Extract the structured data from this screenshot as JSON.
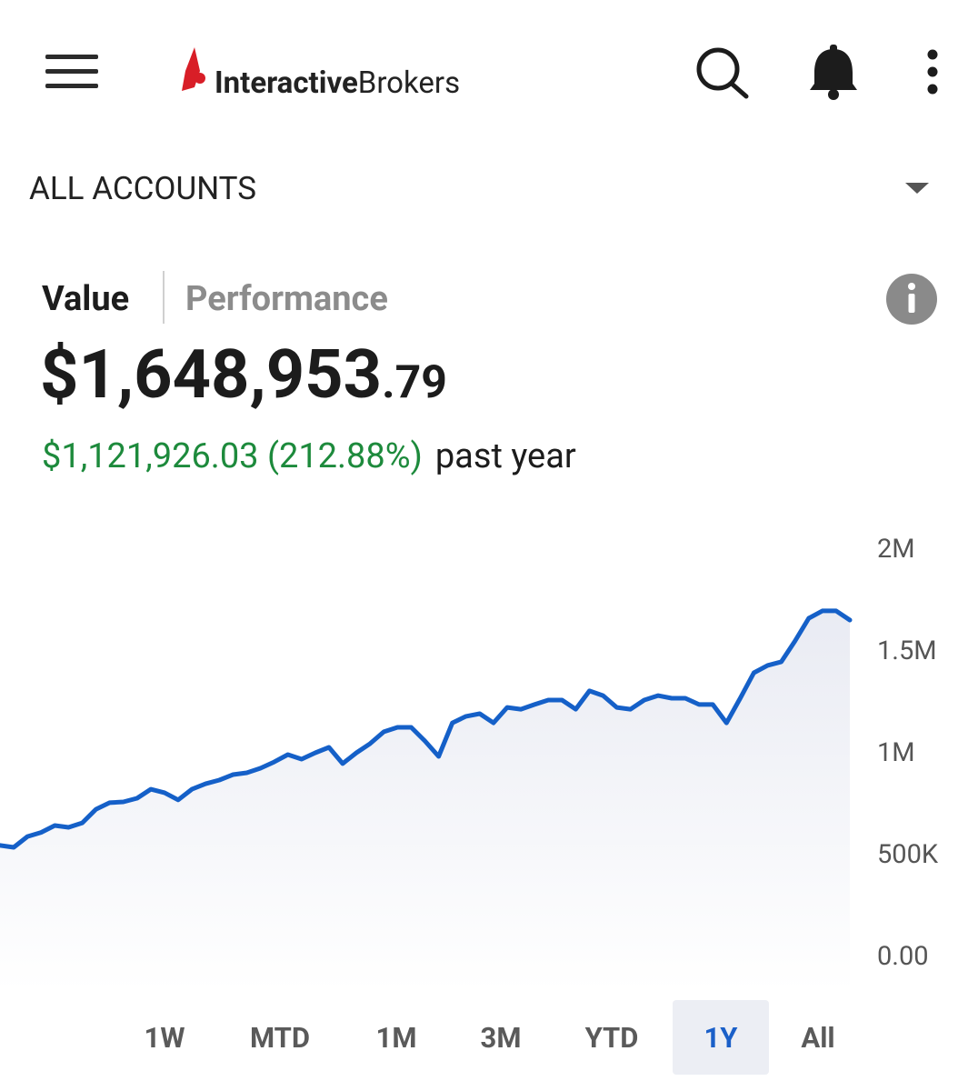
{
  "header": {
    "logo": {
      "bold": "Interactive",
      "regular": "Brokers"
    }
  },
  "account_selector": "ALL ACCOUNTS",
  "tabs": [
    "Value",
    "Performance"
  ],
  "value": {
    "main": "$1,648,953",
    "cents": ".79"
  },
  "change": {
    "amount": "$1,121,926.03 (212.88%)",
    "period": "past year"
  },
  "chart_data": {
    "type": "line",
    "color": "#1560c8",
    "values": [
      536000,
      527000,
      580000,
      600000,
      634000,
      625000,
      647000,
      714000,
      746000,
      750000,
      768000,
      812000,
      795000,
      760000,
      812000,
      839000,
      857000,
      884000,
      893000,
      915000,
      946000,
      982000,
      960000,
      991000,
      1018000,
      938000,
      991000,
      1036000,
      1094000,
      1116000,
      1116000,
      1049000,
      973000,
      1138000,
      1170000,
      1183000,
      1138000,
      1214000,
      1205000,
      1228000,
      1250000,
      1250000,
      1205000,
      1295000,
      1272000,
      1214000,
      1205000,
      1250000,
      1272000,
      1259000,
      1259000,
      1228000,
      1228000,
      1138000,
      1259000,
      1384000,
      1420000,
      1438000,
      1540000,
      1652000,
      1688000,
      1688000,
      1643000
    ],
    "ylim": [
      0,
      2000000
    ],
    "yticks": [
      {
        "value": 0,
        "label": "0.00"
      },
      {
        "value": 500000,
        "label": "500K"
      },
      {
        "value": 1000000,
        "label": "1M"
      },
      {
        "value": 1500000,
        "label": "1.5M"
      },
      {
        "value": 2000000,
        "label": "2M"
      }
    ]
  },
  "ranges": [
    "1W",
    "MTD",
    "1M",
    "3M",
    "YTD",
    "1Y",
    "All"
  ]
}
